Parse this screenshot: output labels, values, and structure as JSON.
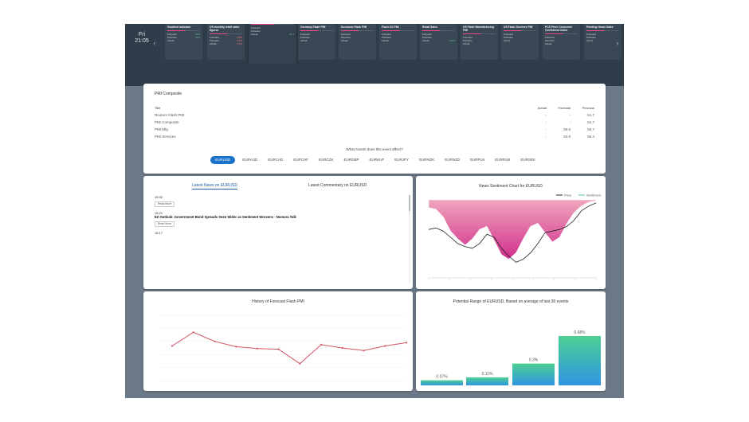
{
  "topbar": {
    "day": "Fri",
    "time": "21:05",
    "cards": [
      {
        "title": "Gradient indicator",
        "sub": "",
        "l1": "Forecast",
        "v1": "37%",
        "l2": "Previous",
        "v2": "37%",
        "l3": "Actual",
        "v3": "",
        "tone": "g"
      },
      {
        "title": "US monthly retail sales figures",
        "sub": "",
        "l1": "Forecast",
        "v1": "0.8%",
        "l2": "Previous",
        "v2": "0.4%",
        "l3": "Actual",
        "v3": "1.5%",
        "tone": "r"
      },
      {
        "title": "",
        "sub": "",
        "l1": "Forecast",
        "v1": "",
        "l2": "Previous",
        "v2": "",
        "l3": "Actual",
        "v3": "51.7",
        "tone": "g"
      },
      {
        "title": "Germany Flash PMI",
        "sub": "",
        "l1": "Forecast",
        "v1": "",
        "l2": "Previous",
        "v2": "",
        "l3": "Actual",
        "v3": "",
        "tone": "g"
      },
      {
        "title": "Eurozone Flash PMI",
        "sub": "",
        "l1": "Forecast",
        "v1": "",
        "l2": "Previous",
        "v2": "",
        "l3": "Actual",
        "v3": "",
        "tone": "g"
      },
      {
        "title": "Flash US PMI",
        "sub": "",
        "l1": "Forecast",
        "v1": "",
        "l2": "Previous",
        "v2": "",
        "l3": "Actual",
        "v3": "",
        "tone": "r"
      },
      {
        "title": "Retail Sales",
        "sub": "",
        "l1": "Forecast",
        "v1": "",
        "l2": "Previous",
        "v2": "",
        "l3": "Actual",
        "v3": "4.0%",
        "tone": "g"
      },
      {
        "title": "US Flash Manufacturing PMI",
        "sub": "",
        "l1": "Forecast",
        "v1": "",
        "l2": "Previous",
        "v2": "",
        "l3": "Actual",
        "v3": "",
        "tone": "r"
      },
      {
        "title": "US Flash Services PMI",
        "sub": "",
        "l1": "Forecast",
        "v1": "",
        "l2": "Previous",
        "v2": "",
        "l3": "Actual",
        "v3": "",
        "tone": "g"
      },
      {
        "title": "PCE Price Consumer Confidence Index",
        "sub": "",
        "l1": "Forecast",
        "v1": "",
        "l2": "Previous",
        "v2": "",
        "l3": "Actual",
        "v3": "",
        "tone": "g"
      },
      {
        "title": "Pending Home Sales",
        "sub": "",
        "l1": "Forecast",
        "v1": "",
        "l2": "Previous",
        "v2": "",
        "l3": "Actual",
        "v3": "",
        "tone": "r"
      }
    ]
  },
  "subbar": {
    "left": "",
    "right": ""
  },
  "event": {
    "title": "PMI Composite",
    "headers": {
      "title": "Title",
      "actual": "Actual",
      "forecast": "Forecast",
      "previous": "Previous"
    },
    "rows": [
      {
        "title": "Reuters Flash PMI",
        "actual": "-",
        "forecast": "-",
        "previous": "51.7"
      },
      {
        "title": "PMI Composite",
        "actual": "-",
        "forecast": "-",
        "previous": "51.7"
      },
      {
        "title": "PMI Mfg",
        "actual": "-",
        "forecast": "55.5",
        "previous": "56.7"
      },
      {
        "title": "PMI Services",
        "actual": "-",
        "forecast": "53.5",
        "previous": "56.4"
      }
    ],
    "assets_question": "What Assets does this event affect?",
    "assets": [
      "EURUSD",
      "EURAUD",
      "EURCAD",
      "EURCHF",
      "EURCZK",
      "EURGBP",
      "EURHUF",
      "EURJPY",
      "EURNOK",
      "EURNZD",
      "EURPLN",
      "EURRUB",
      "EURSEK"
    ],
    "active_asset": "EURUSD"
  },
  "news": {
    "tab_news": "Latest News on EURUSD",
    "tab_commentary": "Latest Commentary on EURUSD",
    "items": [
      {
        "time": "15:32",
        "headline": "",
        "body": "",
        "more": "Read More"
      },
      {
        "time": "15:21",
        "headline": "EZ Outlook: Government Bond Spreads Seen Wider as Sentiment Worsens - Nomura Talk",
        "body": "",
        "more": "Read More"
      },
      {
        "time": "15:17",
        "headline": "",
        "body": "",
        "more": ""
      }
    ],
    "logo": ""
  },
  "sentiment": {
    "title": "News Sentiment Chart for EURUSD",
    "legend_price": "Price",
    "legend_sentiment": "Sentiment"
  },
  "history": {
    "title": "History of Forecast Flash PMI"
  },
  "range": {
    "title": "Potential Range of EURUSD, Based on average of last 30 events"
  },
  "colors": {
    "accent": "#1a73c8",
    "sentiment_pink": "#d12f8c",
    "history_line": "#d35462",
    "bar_green": "#4ccf93",
    "bar_blue": "#2f95e2"
  },
  "chart_data": [
    {
      "type": "area",
      "title": "News Sentiment Chart for EURUSD",
      "series": [
        {
          "name": "Price",
          "values": [
            0.62,
            0.64,
            0.6,
            0.52,
            0.44,
            0.4,
            0.38,
            0.44,
            0.56,
            0.52,
            0.38,
            0.28,
            0.2,
            0.24,
            0.32,
            0.44,
            0.58,
            0.6,
            0.62,
            0.66,
            0.74,
            0.86,
            0.92,
            0.96
          ]
        },
        {
          "name": "Sentiment",
          "values": [
            0.9,
            0.88,
            0.78,
            0.6,
            0.5,
            0.42,
            0.5,
            0.62,
            0.66,
            0.48,
            0.3,
            0.24,
            0.32,
            0.5,
            0.66,
            0.7,
            0.58,
            0.46,
            0.52,
            0.7,
            0.84,
            0.92,
            0.97,
            0.99
          ]
        }
      ]
    },
    {
      "type": "line",
      "title": "History of Forecast Flash PMI",
      "series": [
        {
          "name": "",
          "values": [
            51.3,
            53.4,
            52.0,
            51.2,
            50.9,
            50.8,
            48.6,
            51.5,
            51.0,
            50.6,
            51.3,
            51.8
          ]
        }
      ],
      "ylim": [
        46,
        56
      ]
    },
    {
      "type": "bar",
      "title": "Potential Range of EURUSD, Based on average of last 30 events",
      "categories": [
        "",
        "",
        "",
        ""
      ],
      "values": [
        0.07,
        0.11,
        0.3,
        0.68
      ],
      "labels": [
        "0.07%",
        "0.11%",
        "0.3%",
        "0.68%"
      ]
    }
  ]
}
